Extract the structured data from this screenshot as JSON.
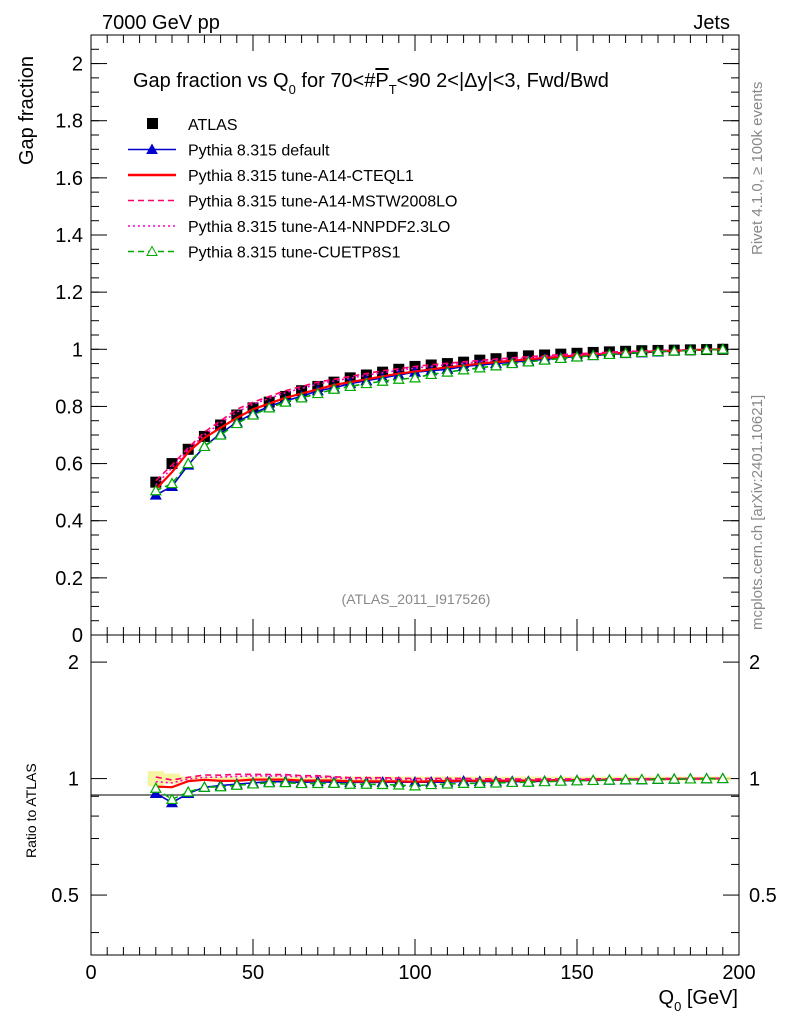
{
  "header": {
    "left": "7000 GeV pp",
    "right": "Jets"
  },
  "side_labels": {
    "rivet": "Rivet 4.1.0, ≥ 100k events",
    "mcplots": "mcplots.cern.ch [arXiv:2401.10621]"
  },
  "watermark": "(ATLAS_2011_I917526)",
  "chart_data": {
    "type": "scatter",
    "title_parts": {
      "a": "Gap fraction vs Q",
      "a_sub": "0",
      "b": " for 70<#",
      "c": "P",
      "c_sub": "T",
      "d": "<90  2<|Δy|<3, Fwd/Bwd"
    },
    "xlabel": "Q",
    "xlabel_sub": "0",
    "xlabel_unit": " [GeV]",
    "ylabel": "Gap fraction",
    "ratio_ylabel": "Ratio to ATLAS",
    "xlim": [
      0,
      200
    ],
    "ylim": [
      0,
      2.1
    ],
    "ratio_ylim": [
      0.35,
      2.35
    ],
    "x_ticks": [
      "0",
      "50",
      "100",
      "150",
      "200"
    ],
    "y_ticks": [
      "0",
      "0.2",
      "0.4",
      "0.6",
      "0.8",
      "1",
      "1.2",
      "1.4",
      "1.6",
      "1.8",
      "2"
    ],
    "ratio_ticks_left": [
      "0.5",
      "1",
      "2"
    ],
    "ratio_ticks_right": [
      "0.5",
      "1",
      "2"
    ],
    "x": [
      20,
      25,
      30,
      35,
      40,
      45,
      50,
      55,
      60,
      65,
      70,
      75,
      80,
      85,
      90,
      95,
      100,
      105,
      110,
      115,
      120,
      125,
      130,
      135,
      140,
      145,
      150,
      155,
      160,
      165,
      170,
      175,
      180,
      185,
      190,
      195
    ],
    "series": [
      {
        "name": "ATLAS",
        "style": "data",
        "color": "#000000",
        "values": [
          0.535,
          0.6,
          0.65,
          0.695,
          0.735,
          0.77,
          0.795,
          0.815,
          0.835,
          0.855,
          0.87,
          0.885,
          0.9,
          0.91,
          0.92,
          0.93,
          0.94,
          0.945,
          0.95,
          0.955,
          0.962,
          0.967,
          0.972,
          0.977,
          0.98,
          0.983,
          0.986,
          0.989,
          0.991,
          0.993,
          0.995,
          0.996,
          0.997,
          0.998,
          0.999,
          1.0
        ]
      },
      {
        "name": "Pythia 8.315 default",
        "style": "solid-triangle",
        "color": "#0000cc",
        "values": [
          0.49,
          0.52,
          0.595,
          0.66,
          0.705,
          0.745,
          0.775,
          0.8,
          0.82,
          0.835,
          0.855,
          0.865,
          0.88,
          0.89,
          0.9,
          0.91,
          0.92,
          0.925,
          0.93,
          0.94,
          0.945,
          0.95,
          0.955,
          0.96,
          0.965,
          0.97,
          0.975,
          0.978,
          0.982,
          0.985,
          0.988,
          0.991,
          0.994,
          0.996,
          0.998,
          1.0
        ]
      },
      {
        "name": "Pythia 8.315 tune-A14-CTEQL1",
        "style": "solid",
        "color": "#ff0000",
        "values": [
          0.51,
          0.57,
          0.64,
          0.69,
          0.725,
          0.76,
          0.79,
          0.81,
          0.83,
          0.845,
          0.86,
          0.875,
          0.885,
          0.895,
          0.905,
          0.915,
          0.922,
          0.93,
          0.937,
          0.943,
          0.95,
          0.955,
          0.96,
          0.965,
          0.97,
          0.974,
          0.978,
          0.982,
          0.985,
          0.988,
          0.991,
          0.993,
          0.995,
          0.997,
          0.999,
          1.0
        ]
      },
      {
        "name": "Pythia 8.315 tune-A14-MSTW2008LO",
        "style": "dashed",
        "color": "#ff0066",
        "values": [
          0.54,
          0.595,
          0.655,
          0.71,
          0.75,
          0.79,
          0.815,
          0.835,
          0.855,
          0.87,
          0.885,
          0.895,
          0.905,
          0.915,
          0.925,
          0.932,
          0.94,
          0.946,
          0.951,
          0.956,
          0.961,
          0.966,
          0.97,
          0.974,
          0.978,
          0.981,
          0.984,
          0.987,
          0.99,
          0.992,
          0.994,
          0.996,
          0.997,
          0.998,
          0.999,
          1.0
        ]
      },
      {
        "name": "Pythia 8.315 tune-A14-NNPDF2.3LO",
        "style": "dotted",
        "color": "#ff00cc",
        "values": [
          0.525,
          0.585,
          0.648,
          0.7,
          0.742,
          0.78,
          0.808,
          0.828,
          0.848,
          0.863,
          0.878,
          0.889,
          0.899,
          0.909,
          0.918,
          0.926,
          0.934,
          0.94,
          0.946,
          0.951,
          0.957,
          0.962,
          0.966,
          0.97,
          0.974,
          0.978,
          0.981,
          0.984,
          0.987,
          0.99,
          0.992,
          0.994,
          0.996,
          0.997,
          0.999,
          1.0
        ]
      },
      {
        "name": "Pythia 8.315 tune-CUETP8S1",
        "style": "dashed-open-triangle",
        "color": "#00aa00",
        "values": [
          0.505,
          0.53,
          0.6,
          0.66,
          0.7,
          0.74,
          0.77,
          0.795,
          0.815,
          0.83,
          0.845,
          0.86,
          0.87,
          0.88,
          0.888,
          0.895,
          0.9,
          0.912,
          0.92,
          0.928,
          0.935,
          0.942,
          0.95,
          0.956,
          0.962,
          0.968,
          0.973,
          0.978,
          0.982,
          0.986,
          0.989,
          0.992,
          0.994,
          0.996,
          0.998,
          1.0
        ]
      }
    ]
  },
  "legend": [
    "ATLAS",
    "Pythia 8.315 default",
    "Pythia 8.315 tune-A14-CTEQL1",
    "Pythia 8.315 tune-A14-MSTW2008LO",
    "Pythia 8.315 tune-A14-NNPDF2.3LO",
    "Pythia 8.315 tune-CUETP8S1"
  ]
}
